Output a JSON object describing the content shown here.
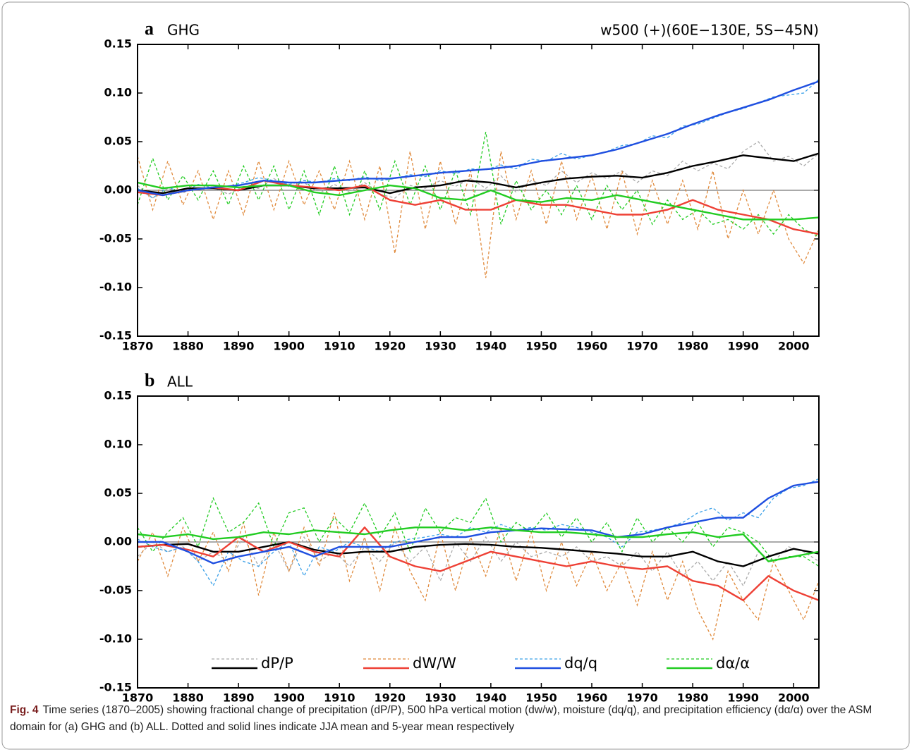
{
  "chart_data": [
    {
      "type": "line",
      "label": "a",
      "title": "GHG",
      "subtitle": "w500 (+)(60E−130E, 5S−45N)",
      "xlim": [
        1870,
        2005
      ],
      "xticks": [
        1870,
        1880,
        1890,
        1900,
        1910,
        1920,
        1930,
        1940,
        1950,
        1960,
        1970,
        1980,
        1990,
        2000
      ],
      "ylim": [
        -0.15,
        0.15
      ],
      "yticks": [
        0.15,
        {
          "value": 0.1,
          "label": "0.10"
        },
        0.05,
        {
          "value": 0,
          "label": "0.00"
        },
        -0.05,
        {
          "value": -0.1,
          "label": "-0.10"
        },
        -0.15
      ],
      "zero_line": true,
      "legend": false,
      "x_annual": [
        1870,
        1873,
        1876,
        1879,
        1882,
        1885,
        1888,
        1891,
        1894,
        1897,
        1900,
        1903,
        1906,
        1909,
        1912,
        1915,
        1918,
        1921,
        1924,
        1927,
        1930,
        1933,
        1936,
        1939,
        1942,
        1945,
        1948,
        1951,
        1954,
        1957,
        1960,
        1963,
        1966,
        1969,
        1972,
        1975,
        1978,
        1981,
        1984,
        1987,
        1990,
        1993,
        1996,
        1999,
        2002,
        2005
      ],
      "x_mean": [
        1870,
        1875,
        1880,
        1885,
        1890,
        1895,
        1900,
        1905,
        1910,
        1915,
        1920,
        1925,
        1930,
        1935,
        1940,
        1945,
        1950,
        1955,
        1960,
        1965,
        1970,
        1975,
        1980,
        1985,
        1990,
        1995,
        2000,
        2005
      ],
      "series": [
        {
          "color": "#000000",
          "annual_color": "#aaaaaa",
          "annual_values": [
            0.005,
            -0.008,
            0.002,
            -0.003,
            0.006,
            0.003,
            -0.004,
            0.004,
            0.002,
            0.012,
            0.004,
            0.008,
            -0.003,
            0.006,
            -0.002,
            0.008,
            -0.004,
            -0.008,
            0.005,
            0.002,
            0.01,
            0.004,
            0.012,
            0.002,
            0.015,
            -0.002,
            0.01,
            0.005,
            0.02,
            0.008,
            0.018,
            0.012,
            0.02,
            0.008,
            0.02,
            0.015,
            0.03,
            0.02,
            0.028,
            0.022,
            0.04,
            0.05,
            0.03,
            0.035,
            0.025,
            0.038
          ],
          "values": [
            0,
            -0.003,
            0.002,
            0.002,
            0,
            0.005,
            0.005,
            0.002,
            0.002,
            0.003,
            -0.003,
            0.003,
            0.005,
            0.01,
            0.008,
            0.003,
            0.008,
            0.012,
            0.014,
            0.015,
            0.013,
            0.018,
            0.025,
            0.03,
            0.036,
            0.033,
            0.03,
            0.038
          ]
        },
        {
          "color": "#ee4035",
          "annual_color": "#e08a3c",
          "annual_values": [
            0.035,
            -0.02,
            0.03,
            -0.015,
            0.02,
            -0.03,
            0.02,
            -0.025,
            0.03,
            -0.02,
            0.03,
            -0.015,
            0.02,
            -0.02,
            0.03,
            -0.03,
            0.025,
            -0.065,
            0.04,
            -0.04,
            0.03,
            -0.035,
            0.02,
            -0.09,
            0.04,
            -0.03,
            0.02,
            -0.035,
            0.03,
            -0.03,
            0.015,
            -0.04,
            0.02,
            -0.045,
            0.01,
            -0.035,
            0.01,
            -0.04,
            0.02,
            -0.05,
            0,
            -0.045,
            0,
            -0.05,
            -0.075,
            -0.04
          ],
          "values": [
            -0.002,
            -0.005,
            0,
            0.003,
            0,
            0.01,
            0.005,
            0.003,
            0,
            0.005,
            -0.01,
            -0.015,
            -0.01,
            -0.02,
            -0.02,
            -0.01,
            -0.015,
            -0.015,
            -0.02,
            -0.025,
            -0.025,
            -0.02,
            -0.01,
            -0.02,
            -0.025,
            -0.03,
            -0.04,
            -0.045
          ]
        },
        {
          "color": "#1f4fe0",
          "annual_color": "#3aa0e8",
          "annual_values": [
            0.002,
            -0.008,
            0.003,
            -0.002,
            0.006,
            0.002,
            0.004,
            0.008,
            0.013,
            0.01,
            0.006,
            0.01,
            0.008,
            0.012,
            0.01,
            0.014,
            0.01,
            0.012,
            0.016,
            0.014,
            0.02,
            0.017,
            0.022,
            0.021,
            0.026,
            0.022,
            0.032,
            0.03,
            0.038,
            0.032,
            0.036,
            0.04,
            0.046,
            0.048,
            0.056,
            0.054,
            0.066,
            0.068,
            0.074,
            0.08,
            0.084,
            0.09,
            0.096,
            0.098,
            0.1,
            0.114
          ],
          "values": [
            0,
            -0.005,
            0,
            0.003,
            0.005,
            0.01,
            0.008,
            0.008,
            0.01,
            0.012,
            0.012,
            0.015,
            0.018,
            0.02,
            0.022,
            0.025,
            0.03,
            0.033,
            0.036,
            0.042,
            0.05,
            0.058,
            0.068,
            0.077,
            0.085,
            0.093,
            0.103,
            0.112
          ]
        },
        {
          "color": "#22cc22",
          "annual_color": "#22cc22",
          "annual_values": [
            -0.015,
            0.033,
            -0.01,
            0.015,
            -0.01,
            0.02,
            -0.015,
            0.025,
            -0.01,
            0.025,
            -0.02,
            0.02,
            -0.025,
            0.025,
            -0.025,
            0.02,
            -0.02,
            0.03,
            -0.015,
            0.025,
            -0.02,
            0.02,
            -0.025,
            0.06,
            -0.035,
            0.01,
            -0.02,
            0,
            -0.025,
            0.005,
            -0.03,
            0.005,
            -0.02,
            0,
            -0.035,
            -0.01,
            -0.03,
            -0.02,
            -0.035,
            -0.03,
            -0.04,
            -0.025,
            -0.045,
            -0.025,
            -0.04,
            -0.048
          ],
          "values": [
            0.008,
            0.002,
            0.005,
            0.005,
            0.003,
            0.005,
            0.005,
            -0.002,
            -0.005,
            0,
            0.005,
            0.002,
            -0.008,
            -0.01,
            0,
            -0.01,
            -0.012,
            -0.008,
            -0.01,
            -0.005,
            -0.01,
            -0.015,
            -0.02,
            -0.025,
            -0.03,
            -0.03,
            -0.03,
            -0.028
          ]
        }
      ]
    },
    {
      "type": "line",
      "label": "b",
      "title": "ALL",
      "xlim": [
        1870,
        2005
      ],
      "xticks": [
        1870,
        1880,
        1890,
        1900,
        1910,
        1920,
        1930,
        1940,
        1950,
        1960,
        1970,
        1980,
        1990,
        2000
      ],
      "ylim": [
        -0.15,
        0.15
      ],
      "yticks": [
        0.15,
        {
          "value": 0.1,
          "label": "0.10"
        },
        0.05,
        {
          "value": 0,
          "label": "0.00"
        },
        -0.05,
        {
          "value": -0.1,
          "label": "-0.10"
        },
        -0.15
      ],
      "zero_line": true,
      "legend": "bottom",
      "x_annual": [
        1870,
        1873,
        1876,
        1879,
        1882,
        1885,
        1888,
        1891,
        1894,
        1897,
        1900,
        1903,
        1906,
        1909,
        1912,
        1915,
        1918,
        1921,
        1924,
        1927,
        1930,
        1933,
        1936,
        1939,
        1942,
        1945,
        1948,
        1951,
        1954,
        1957,
        1960,
        1963,
        1966,
        1969,
        1972,
        1975,
        1978,
        1981,
        1984,
        1987,
        1990,
        1993,
        1996,
        1999,
        2002,
        2005
      ],
      "x_mean": [
        1870,
        1875,
        1880,
        1885,
        1890,
        1895,
        1900,
        1905,
        1910,
        1915,
        1920,
        1925,
        1930,
        1935,
        1940,
        1945,
        1950,
        1955,
        1960,
        1965,
        1970,
        1975,
        1980,
        1985,
        1990,
        1995,
        2000,
        2005
      ],
      "series": [
        {
          "name": "dP/P",
          "color": "#000000",
          "annual_color": "#aaaaaa",
          "annual_values": [
            -0.015,
            0,
            -0.01,
            -0.005,
            -0.02,
            -0.01,
            -0.02,
            0.005,
            -0.025,
            0,
            -0.03,
            0.005,
            -0.02,
            -0.01,
            -0.025,
            -0.005,
            -0.02,
            0,
            -0.02,
            -0.005,
            -0.04,
            0,
            -0.02,
            0.005,
            -0.02,
            0,
            -0.015,
            -0.01,
            -0.015,
            -0.005,
            -0.02,
            -0.015,
            -0.025,
            -0.01,
            -0.03,
            -0.01,
            -0.035,
            -0.02,
            -0.04,
            -0.02,
            -0.045,
            -0.01,
            -0.02,
            -0.005,
            -0.01,
            -0.02
          ],
          "values": [
            -0.005,
            -0.003,
            -0.002,
            -0.01,
            -0.01,
            -0.005,
            0,
            -0.008,
            -0.012,
            -0.01,
            -0.01,
            -0.005,
            -0.003,
            -0.002,
            -0.003,
            -0.005,
            -0.006,
            -0.008,
            -0.01,
            -0.012,
            -0.015,
            -0.015,
            -0.01,
            -0.02,
            -0.025,
            -0.015,
            -0.007,
            -0.012
          ]
        },
        {
          "name": "dW/W",
          "color": "#ee4035",
          "annual_color": "#e08a3c",
          "annual_values": [
            -0.02,
            0.01,
            -0.035,
            0.015,
            -0.02,
            0.01,
            -0.03,
            0.02,
            -0.055,
            0.01,
            -0.03,
            0.015,
            -0.025,
            0.03,
            -0.04,
            0.005,
            -0.05,
            0.015,
            -0.03,
            -0.06,
            0.01,
            -0.05,
            0.005,
            -0.035,
            0.015,
            -0.04,
            0.01,
            -0.05,
            0,
            -0.045,
            -0.01,
            -0.05,
            -0.02,
            -0.065,
            -0.01,
            -0.06,
            -0.02,
            -0.07,
            -0.1,
            -0.03,
            -0.06,
            -0.08,
            -0.02,
            -0.05,
            -0.08,
            -0.04
          ],
          "values": [
            -0.005,
            -0.003,
            -0.008,
            -0.015,
            0.005,
            -0.01,
            0,
            -0.01,
            -0.015,
            0.015,
            -0.015,
            -0.025,
            -0.03,
            -0.02,
            -0.01,
            -0.015,
            -0.02,
            -0.025,
            -0.02,
            -0.025,
            -0.028,
            -0.025,
            -0.04,
            -0.045,
            -0.06,
            -0.035,
            -0.05,
            -0.06
          ]
        },
        {
          "name": "dq/q",
          "color": "#1f4fe0",
          "annual_color": "#3aa0e8",
          "annual_values": [
            0.003,
            -0.005,
            -0.01,
            -0.005,
            -0.02,
            -0.045,
            -0.01,
            -0.02,
            -0.025,
            -0.01,
            0,
            -0.035,
            -0.005,
            -0.01,
            0,
            -0.005,
            -0.01,
            0,
            0.003,
            0.005,
            0.008,
            0.005,
            0.015,
            0.01,
            0.018,
            0.012,
            0.015,
            0.012,
            0.018,
            0.015,
            0.01,
            0.005,
            -0.005,
            0.01,
            0.012,
            0.015,
            0.02,
            0.03,
            0.035,
            0.022,
            0.03,
            0.025,
            0.045,
            0.055,
            0.058,
            0.065
          ],
          "values": [
            0,
            0,
            -0.01,
            -0.022,
            -0.015,
            -0.01,
            -0.005,
            -0.015,
            -0.005,
            -0.005,
            -0.005,
            0,
            0.005,
            0.005,
            0.01,
            0.012,
            0.014,
            0.013,
            0.012,
            0.005,
            0.008,
            0.015,
            0.02,
            0.025,
            0.025,
            0.045,
            0.058,
            0.062
          ]
        },
        {
          "name": "dα/α",
          "color": "#22cc22",
          "annual_color": "#22cc22",
          "annual_values": [
            0.015,
            -0.01,
            0.01,
            0.025,
            -0.005,
            0.045,
            0.01,
            0.02,
            0.04,
            -0.005,
            0.03,
            0.035,
            0,
            0.025,
            0.01,
            0.04,
            0.005,
            0.03,
            -0.01,
            0.035,
            0.01,
            0.025,
            0.02,
            0.045,
            0,
            0.02,
            0.01,
            0.03,
            0.005,
            0.025,
            0,
            0.02,
            -0.01,
            0.025,
            0,
            0.015,
            0,
            0.02,
            -0.005,
            0.015,
            0.01,
            0,
            -0.02,
            -0.015,
            -0.015,
            -0.025
          ],
          "values": [
            0.008,
            0.005,
            0.008,
            0.003,
            0.005,
            0.01,
            0.008,
            0.012,
            0.01,
            0.008,
            0.012,
            0.015,
            0.015,
            0.012,
            0.015,
            0.012,
            0.01,
            0.01,
            0.008,
            0.005,
            0.005,
            0.008,
            0.01,
            0.005,
            0.008,
            -0.02,
            -0.015,
            -0.01
          ]
        }
      ]
    }
  ],
  "caption": {
    "label": "Fig. 4",
    "text": "Time series (1870–2005) showing fractional change of precipitation (dP/P), 500 hPa vertical motion (dw/w), moisture (dq/q), and precipitation efficiency (dα/α) over the ASM domain for (a) GHG and (b) ALL. Dotted and solid lines indicate JJA mean and 5-year mean respectively"
  }
}
